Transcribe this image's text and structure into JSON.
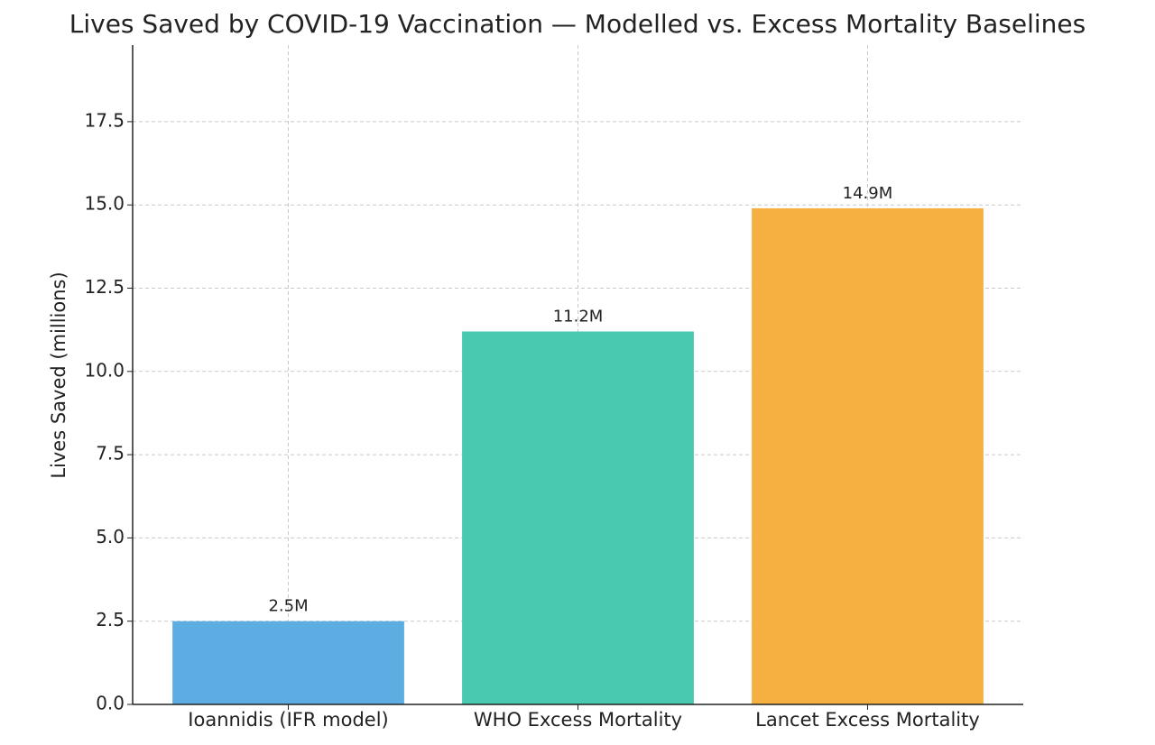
{
  "chart_data": {
    "type": "bar",
    "title": "Lives Saved by COVID-19 Vaccination — Modelled vs. Excess Mortality Baselines",
    "y_label": "Lives Saved (millions)",
    "categories": [
      "Ioannidis (IFR model)",
      "WHO Excess Mortality",
      "Lancet Excess Mortality"
    ],
    "values": [
      2.5,
      11.2,
      14.9
    ],
    "value_labels": [
      "2.5M",
      "11.2M",
      "14.9M"
    ],
    "colors": [
      "#5dade2",
      "#48c9b0",
      "#f5b041"
    ],
    "ylim": [
      0,
      19.8
    ],
    "yticks": [
      {
        "value": 0,
        "label": "0.0"
      },
      2.5,
      {
        "value": 5,
        "label": "5.0"
      },
      7.5,
      {
        "value": 10,
        "label": "10.0"
      },
      12.5,
      {
        "value": 15,
        "label": "15.0"
      },
      17.5
    ],
    "grid": true
  }
}
